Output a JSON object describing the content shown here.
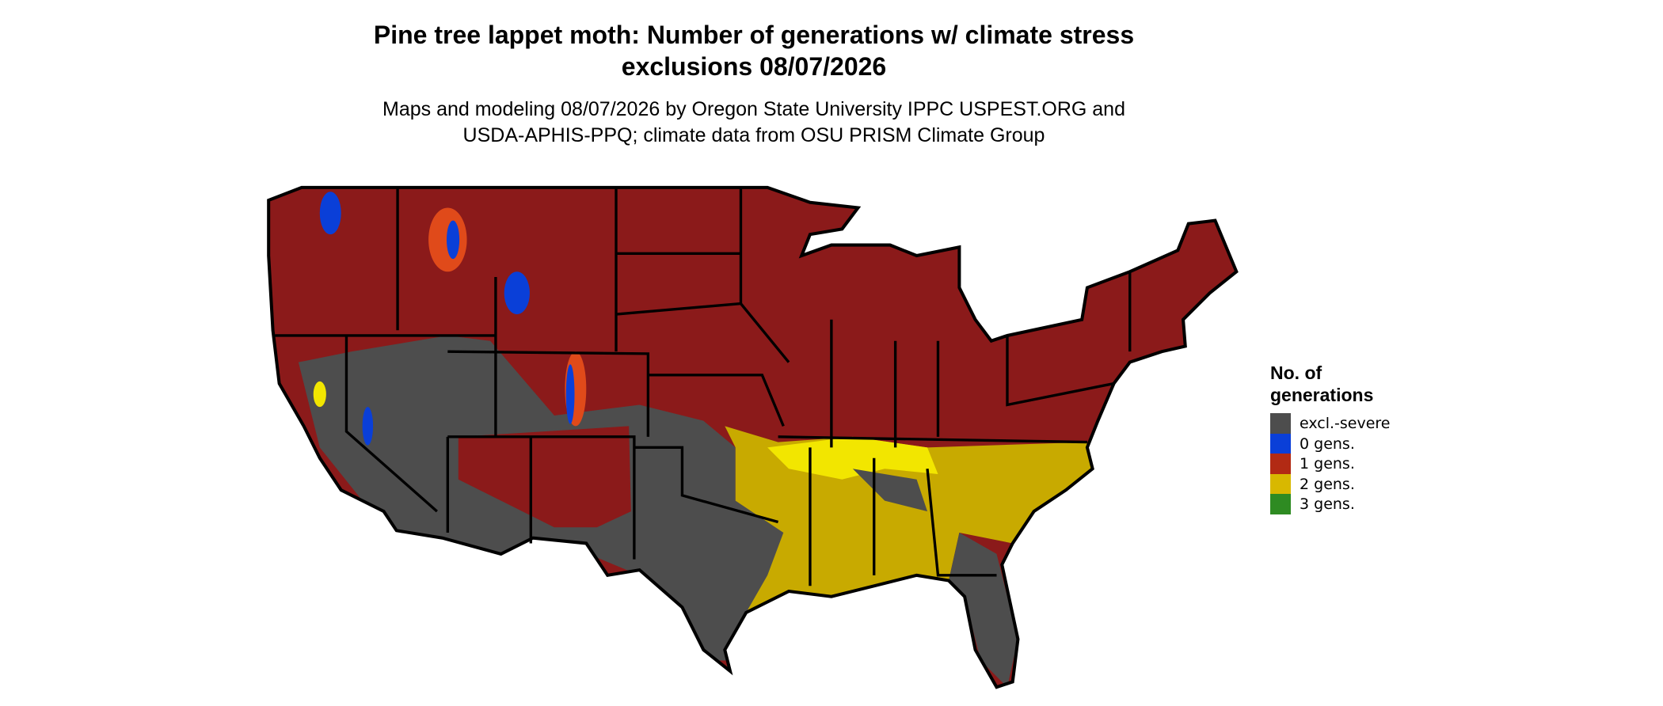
{
  "title_lines": [
    "Pine tree lappet moth: Number of generations w/ climate stress",
    "exclusions 08/07/2026"
  ],
  "subtitle_lines": [
    "Maps and modeling 08/07/2026 by Oregon State University IPPC USPEST.ORG and",
    "USDA-APHIS-PPQ; climate data from OSU PRISM Climate Group"
  ],
  "legend": {
    "title_lines": [
      "No. of",
      "generations"
    ],
    "items": [
      {
        "label": "excl.-severe",
        "color": "#4d4d4d"
      },
      {
        "label": "0 gens.",
        "color": "#0a3fd8"
      },
      {
        "label": "1 gens.",
        "color": "#b22a14"
      },
      {
        "label": "2 gens.",
        "color": "#d8b800"
      },
      {
        "label": "3 gens.",
        "color": "#2e8b22"
      }
    ]
  }
}
